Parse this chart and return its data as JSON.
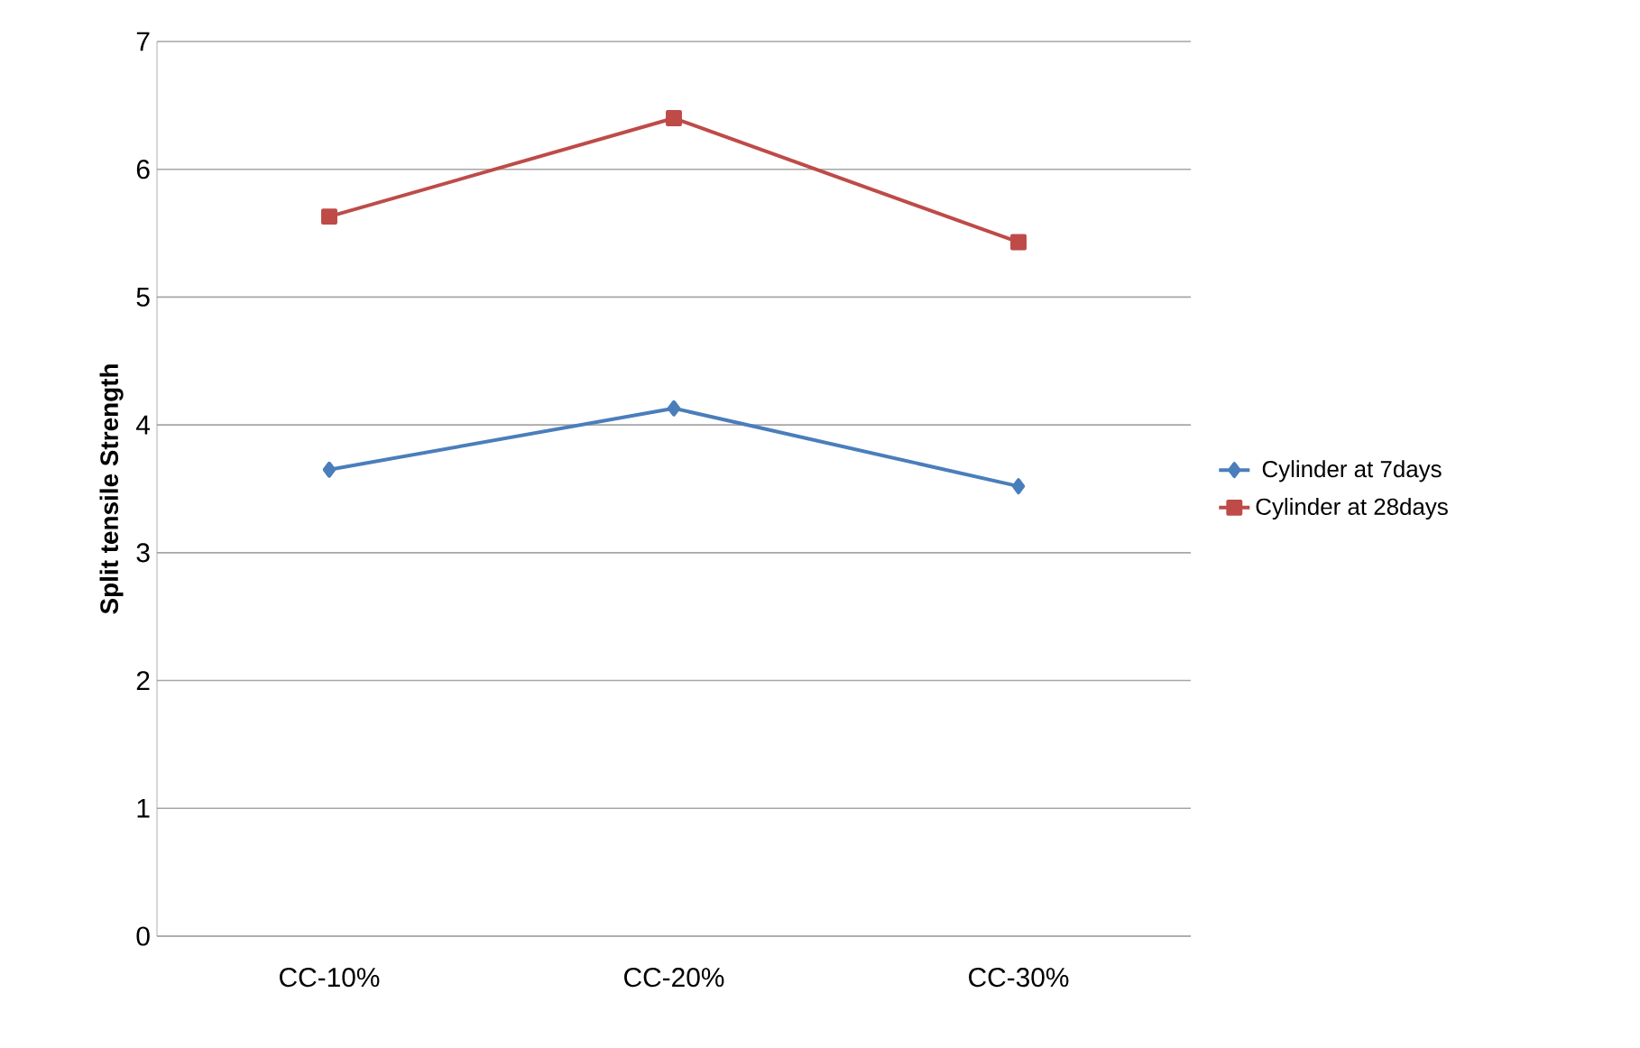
{
  "chart_data": {
    "type": "line",
    "ylabel": "**Split tensile Strength**",
    "categories": [
      "CC-10%",
      "CC-20%",
      "CC-30%"
    ],
    "series": [
      {
        "name": "Cylinder at 7days",
        "color": "#4a7ebb",
        "marker": "diamond",
        "values": [
          3.65,
          4.13,
          3.52
        ]
      },
      {
        "name": "Cylinder at 28days",
        "color": "#be4b48",
        "marker": "square",
        "values": [
          5.63,
          6.4,
          5.43
        ]
      }
    ],
    "ylim": [
      0,
      7
    ],
    "yticks": [
      0,
      1,
      2,
      3,
      4,
      5,
      6,
      7
    ],
    "grid": "y",
    "legend": "right"
  }
}
